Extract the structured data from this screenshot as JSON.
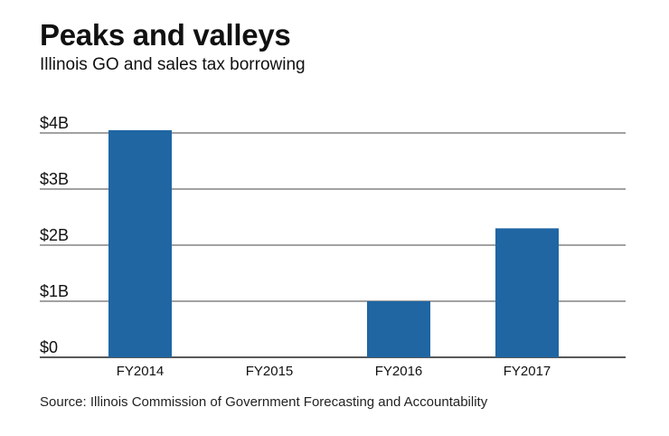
{
  "chart_data": {
    "type": "bar",
    "title": "Peaks and valleys",
    "subtitle": "Illinois GO and sales tax borrowing",
    "categories": [
      "FY2014",
      "FY2015",
      "FY2016",
      "FY2017"
    ],
    "values": [
      4.05,
      0,
      1.0,
      2.3
    ],
    "unit": "billion USD",
    "ylim": [
      0,
      4
    ],
    "yticks": [
      0,
      1,
      2,
      3,
      4
    ],
    "ytick_labels": [
      "$0",
      "$1B",
      "$2B",
      "$3B",
      "$4B"
    ],
    "xlabel": "",
    "ylabel": "",
    "grid": true,
    "legend": "none",
    "bar_color": "#1f66a3",
    "source": "Source: Illinois Commission of Government Forecasting and Accountability"
  }
}
